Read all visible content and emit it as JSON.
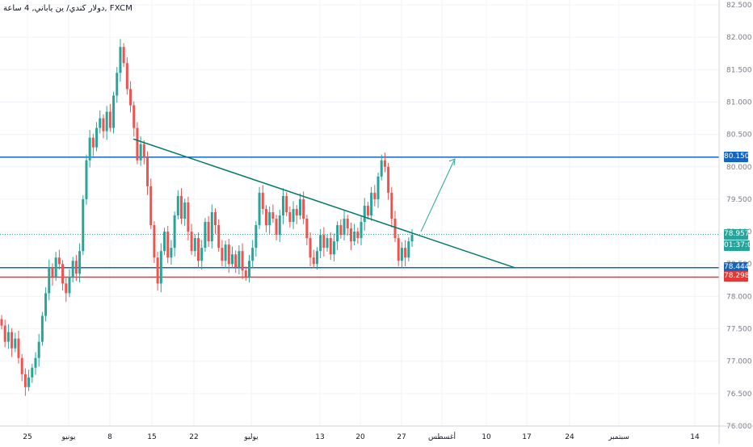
{
  "window": {
    "symbol_title": "دولار كندي/ ين ياباني, 4 ساعة, FXCM"
  },
  "colors": {
    "up": "#26a69a",
    "down": "#ef5350",
    "wick_up": "#26a69a",
    "wick_down": "#ef5350",
    "hline_blue": "#1565c0",
    "hline_red": "#e53935",
    "trendline": "#00796b",
    "arrow": "#26a69a",
    "current_price": "#26a69a",
    "grid": "#f0f3fa"
  },
  "chart_data": {
    "type": "candlestick",
    "y_axis": {
      "min": 76.0,
      "max": 82.5,
      "ticks": [
        82.5,
        82.0,
        81.5,
        81.0,
        80.5,
        80.0,
        79.5,
        79.0,
        78.5,
        78.0,
        77.5,
        77.0,
        76.5,
        76.0
      ],
      "tick_labels": [
        "82.500",
        "82.000",
        "81.500",
        "81.000",
        "80.500",
        "80.000",
        "79.500",
        "79.000",
        "78.500",
        "78.000",
        "77.500",
        "77.000",
        "76.500",
        "76.000"
      ]
    },
    "x_axis": {
      "labels": [
        "25",
        "يونيو",
        "8",
        "15",
        "22",
        "يوليو",
        "13",
        "20",
        "27",
        "أغسطس",
        "10",
        "17",
        "24",
        "سبتمبر",
        "14"
      ]
    },
    "price_labels": [
      {
        "value": 80.15,
        "text": "80.150",
        "color": "#1565c0"
      },
      {
        "value": 78.957,
        "text": "78.957",
        "color": "#26a69a"
      },
      {
        "value": 78.444,
        "text": "78.444",
        "color": "#1565c0"
      },
      {
        "value": 78.298,
        "text": "78.298",
        "color": "#e53935"
      }
    ],
    "countdown": "01:37:00",
    "horizontal_lines": [
      {
        "value": 80.15,
        "color": "#1565c0"
      },
      {
        "value": 78.444,
        "color": "#1565c0"
      },
      {
        "value": 78.298,
        "color": "#e53935"
      }
    ],
    "current_price": 78.957,
    "trendline": {
      "from": {
        "date": "Jul 10",
        "value": 80.43
      },
      "to": {
        "date": "Aug 15",
        "value": 78.44
      }
    },
    "arrow": {
      "from": {
        "date": "Jul 28",
        "value": 79.0
      },
      "to": {
        "date": "Jul 31",
        "value": 80.1
      }
    },
    "candles": [
      [
        77.65,
        77.55
      ],
      [
        77.55,
        77.3
      ],
      [
        77.3,
        77.45
      ],
      [
        77.45,
        77.2
      ],
      [
        77.2,
        77.35
      ],
      [
        77.35,
        77.05
      ],
      [
        77.05,
        76.8
      ],
      [
        76.8,
        76.6
      ],
      [
        76.6,
        76.75
      ],
      [
        76.75,
        76.9
      ],
      [
        76.9,
        77.05
      ],
      [
        77.05,
        77.3
      ],
      [
        77.3,
        77.7
      ],
      [
        77.7,
        78.05
      ],
      [
        78.05,
        78.45
      ],
      [
        78.45,
        78.3
      ],
      [
        78.3,
        78.6
      ],
      [
        78.6,
        78.5
      ],
      [
        78.5,
        78.2
      ],
      [
        78.2,
        78.05
      ],
      [
        78.05,
        78.3
      ],
      [
        78.3,
        78.55
      ],
      [
        78.55,
        78.35
      ],
      [
        78.35,
        78.7
      ],
      [
        78.7,
        79.5
      ],
      [
        79.5,
        80.1
      ],
      [
        80.1,
        80.45
      ],
      [
        80.45,
        80.3
      ],
      [
        80.3,
        80.6
      ],
      [
        80.6,
        80.75
      ],
      [
        80.75,
        80.55
      ],
      [
        80.55,
        80.85
      ],
      [
        80.85,
        80.6
      ],
      [
        80.6,
        81.1
      ],
      [
        81.1,
        81.45
      ],
      [
        81.45,
        81.85
      ],
      [
        81.85,
        81.6
      ],
      [
        81.6,
        81.2
      ],
      [
        81.2,
        80.95
      ],
      [
        80.95,
        80.6
      ],
      [
        80.6,
        80.1
      ],
      [
        80.1,
        80.35
      ],
      [
        80.35,
        80.15
      ],
      [
        80.15,
        79.7
      ],
      [
        79.7,
        79.1
      ],
      [
        79.1,
        78.6
      ],
      [
        78.6,
        78.2
      ],
      [
        78.2,
        78.7
      ],
      [
        78.7,
        79.0
      ],
      [
        79.0,
        78.6
      ],
      [
        78.6,
        78.75
      ],
      [
        78.75,
        79.25
      ],
      [
        79.25,
        79.55
      ],
      [
        79.55,
        79.2
      ],
      [
        79.2,
        79.45
      ],
      [
        79.45,
        79.0
      ],
      [
        79.0,
        78.7
      ],
      [
        78.7,
        78.9
      ],
      [
        78.9,
        78.55
      ],
      [
        78.55,
        78.75
      ],
      [
        78.75,
        79.15
      ],
      [
        79.15,
        78.85
      ],
      [
        78.85,
        79.3
      ],
      [
        79.3,
        79.1
      ],
      [
        79.1,
        78.75
      ],
      [
        78.75,
        78.55
      ],
      [
        78.55,
        78.8
      ],
      [
        78.8,
        78.5
      ],
      [
        78.5,
        78.65
      ],
      [
        78.65,
        78.45
      ],
      [
        78.45,
        78.7
      ],
      [
        78.7,
        78.4
      ],
      [
        78.4,
        78.3
      ],
      [
        78.3,
        78.55
      ],
      [
        78.55,
        78.75
      ],
      [
        78.75,
        79.1
      ],
      [
        79.1,
        79.6
      ],
      [
        79.6,
        79.35
      ],
      [
        79.35,
        79.1
      ],
      [
        79.1,
        79.3
      ],
      [
        79.3,
        79.2
      ],
      [
        79.2,
        78.95
      ],
      [
        78.95,
        79.25
      ],
      [
        79.25,
        79.55
      ],
      [
        79.55,
        79.3
      ],
      [
        79.3,
        79.15
      ],
      [
        79.15,
        79.35
      ],
      [
        79.35,
        79.25
      ],
      [
        79.25,
        79.5
      ],
      [
        79.5,
        79.2
      ],
      [
        79.2,
        78.9
      ],
      [
        78.9,
        78.6
      ],
      [
        78.6,
        78.5
      ],
      [
        78.5,
        78.7
      ],
      [
        78.7,
        78.95
      ],
      [
        78.95,
        78.75
      ],
      [
        78.75,
        78.9
      ],
      [
        78.9,
        78.65
      ],
      [
        78.65,
        78.85
      ],
      [
        78.85,
        79.1
      ],
      [
        79.1,
        78.95
      ],
      [
        78.95,
        79.2
      ],
      [
        79.2,
        79.05
      ],
      [
        79.05,
        78.85
      ],
      [
        78.85,
        79.0
      ],
      [
        79.0,
        78.9
      ],
      [
        78.9,
        79.15
      ],
      [
        79.15,
        79.4
      ],
      [
        79.4,
        79.25
      ],
      [
        79.25,
        79.6
      ],
      [
        79.6,
        79.5
      ],
      [
        79.5,
        79.85
      ],
      [
        79.85,
        80.1
      ],
      [
        80.1,
        80.0
      ],
      [
        80.0,
        79.6
      ],
      [
        79.6,
        79.2
      ],
      [
        79.2,
        78.9
      ],
      [
        78.9,
        78.55
      ],
      [
        78.55,
        78.75
      ],
      [
        78.75,
        78.6
      ],
      [
        78.6,
        78.85
      ],
      [
        78.85,
        78.95
      ]
    ]
  }
}
